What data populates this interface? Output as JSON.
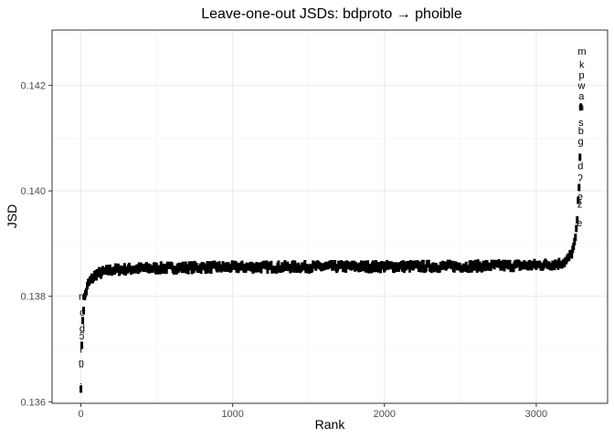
{
  "chart_data": {
    "type": "scatter",
    "title": "Leave-one-out JSDs: bdproto → phoible",
    "xlabel": "Rank",
    "ylabel": "JSD",
    "xlim": [
      -190,
      3470
    ],
    "ylim": [
      0.13597,
      0.14305
    ],
    "x_ticks": [
      0,
      1000,
      2000,
      3000
    ],
    "x_tick_labels": [
      "0",
      "1000",
      "2000",
      "3000"
    ],
    "y_ticks": [
      0.136,
      0.138,
      0.14,
      0.142
    ],
    "y_tick_labels": [
      "0.136",
      "0.138",
      "0.140",
      "0.142"
    ],
    "grid": true,
    "legend": "none",
    "point_style": "text labels",
    "n_points": 3300,
    "curve_profile": {
      "x": [
        0,
        10,
        25,
        50,
        100,
        200,
        400,
        800,
        1500,
        2500,
        3000,
        3150,
        3200,
        3230,
        3250,
        3265,
        3275,
        3285,
        3292,
        3299
      ],
      "y": [
        0.1363,
        0.1375,
        0.138,
        0.13825,
        0.13842,
        0.1385,
        0.13853,
        0.13855,
        0.13856,
        0.13857,
        0.13859,
        0.13862,
        0.13867,
        0.1388,
        0.13895,
        0.13925,
        0.1397,
        0.1403,
        0.1412,
        0.14265
      ]
    },
    "labeled_points": [
      {
        "x": 0,
        "y": 0.13628,
        "label": "ɨ"
      },
      {
        "x": 2,
        "y": 0.13675,
        "label": "n̪"
      },
      {
        "x": 4,
        "y": 0.137,
        "label": "r"
      },
      {
        "x": 6,
        "y": 0.13725,
        "label": "ɔ"
      },
      {
        "x": 8,
        "y": 0.1374,
        "label": "d̪"
      },
      {
        "x": 10,
        "y": 0.1377,
        "label": "o"
      },
      {
        "x": 12,
        "y": 0.138,
        "label": "m"
      },
      {
        "x": 3285,
        "y": 0.1394,
        "label": "e"
      },
      {
        "x": 3287,
        "y": 0.13975,
        "label": "z"
      },
      {
        "x": 3289,
        "y": 0.1399,
        "label": "e̞"
      },
      {
        "x": 3290,
        "y": 0.14025,
        "label": "ʔ"
      },
      {
        "x": 3291,
        "y": 0.14048,
        "label": "d"
      },
      {
        "x": 3293,
        "y": 0.14095,
        "label": "g"
      },
      {
        "x": 3294,
        "y": 0.14115,
        "label": "b"
      },
      {
        "x": 3295,
        "y": 0.1413,
        "label": "s"
      },
      {
        "x": 3296,
        "y": 0.1416,
        "label": "n"
      },
      {
        "x": 3297,
        "y": 0.1418,
        "label": "a"
      },
      {
        "x": 3298,
        "y": 0.142,
        "label": "w"
      },
      {
        "x": 3299,
        "y": 0.1422,
        "label": "p"
      },
      {
        "x": 3300,
        "y": 0.1424,
        "label": "k"
      },
      {
        "x": 3301,
        "y": 0.14265,
        "label": "m"
      }
    ]
  }
}
